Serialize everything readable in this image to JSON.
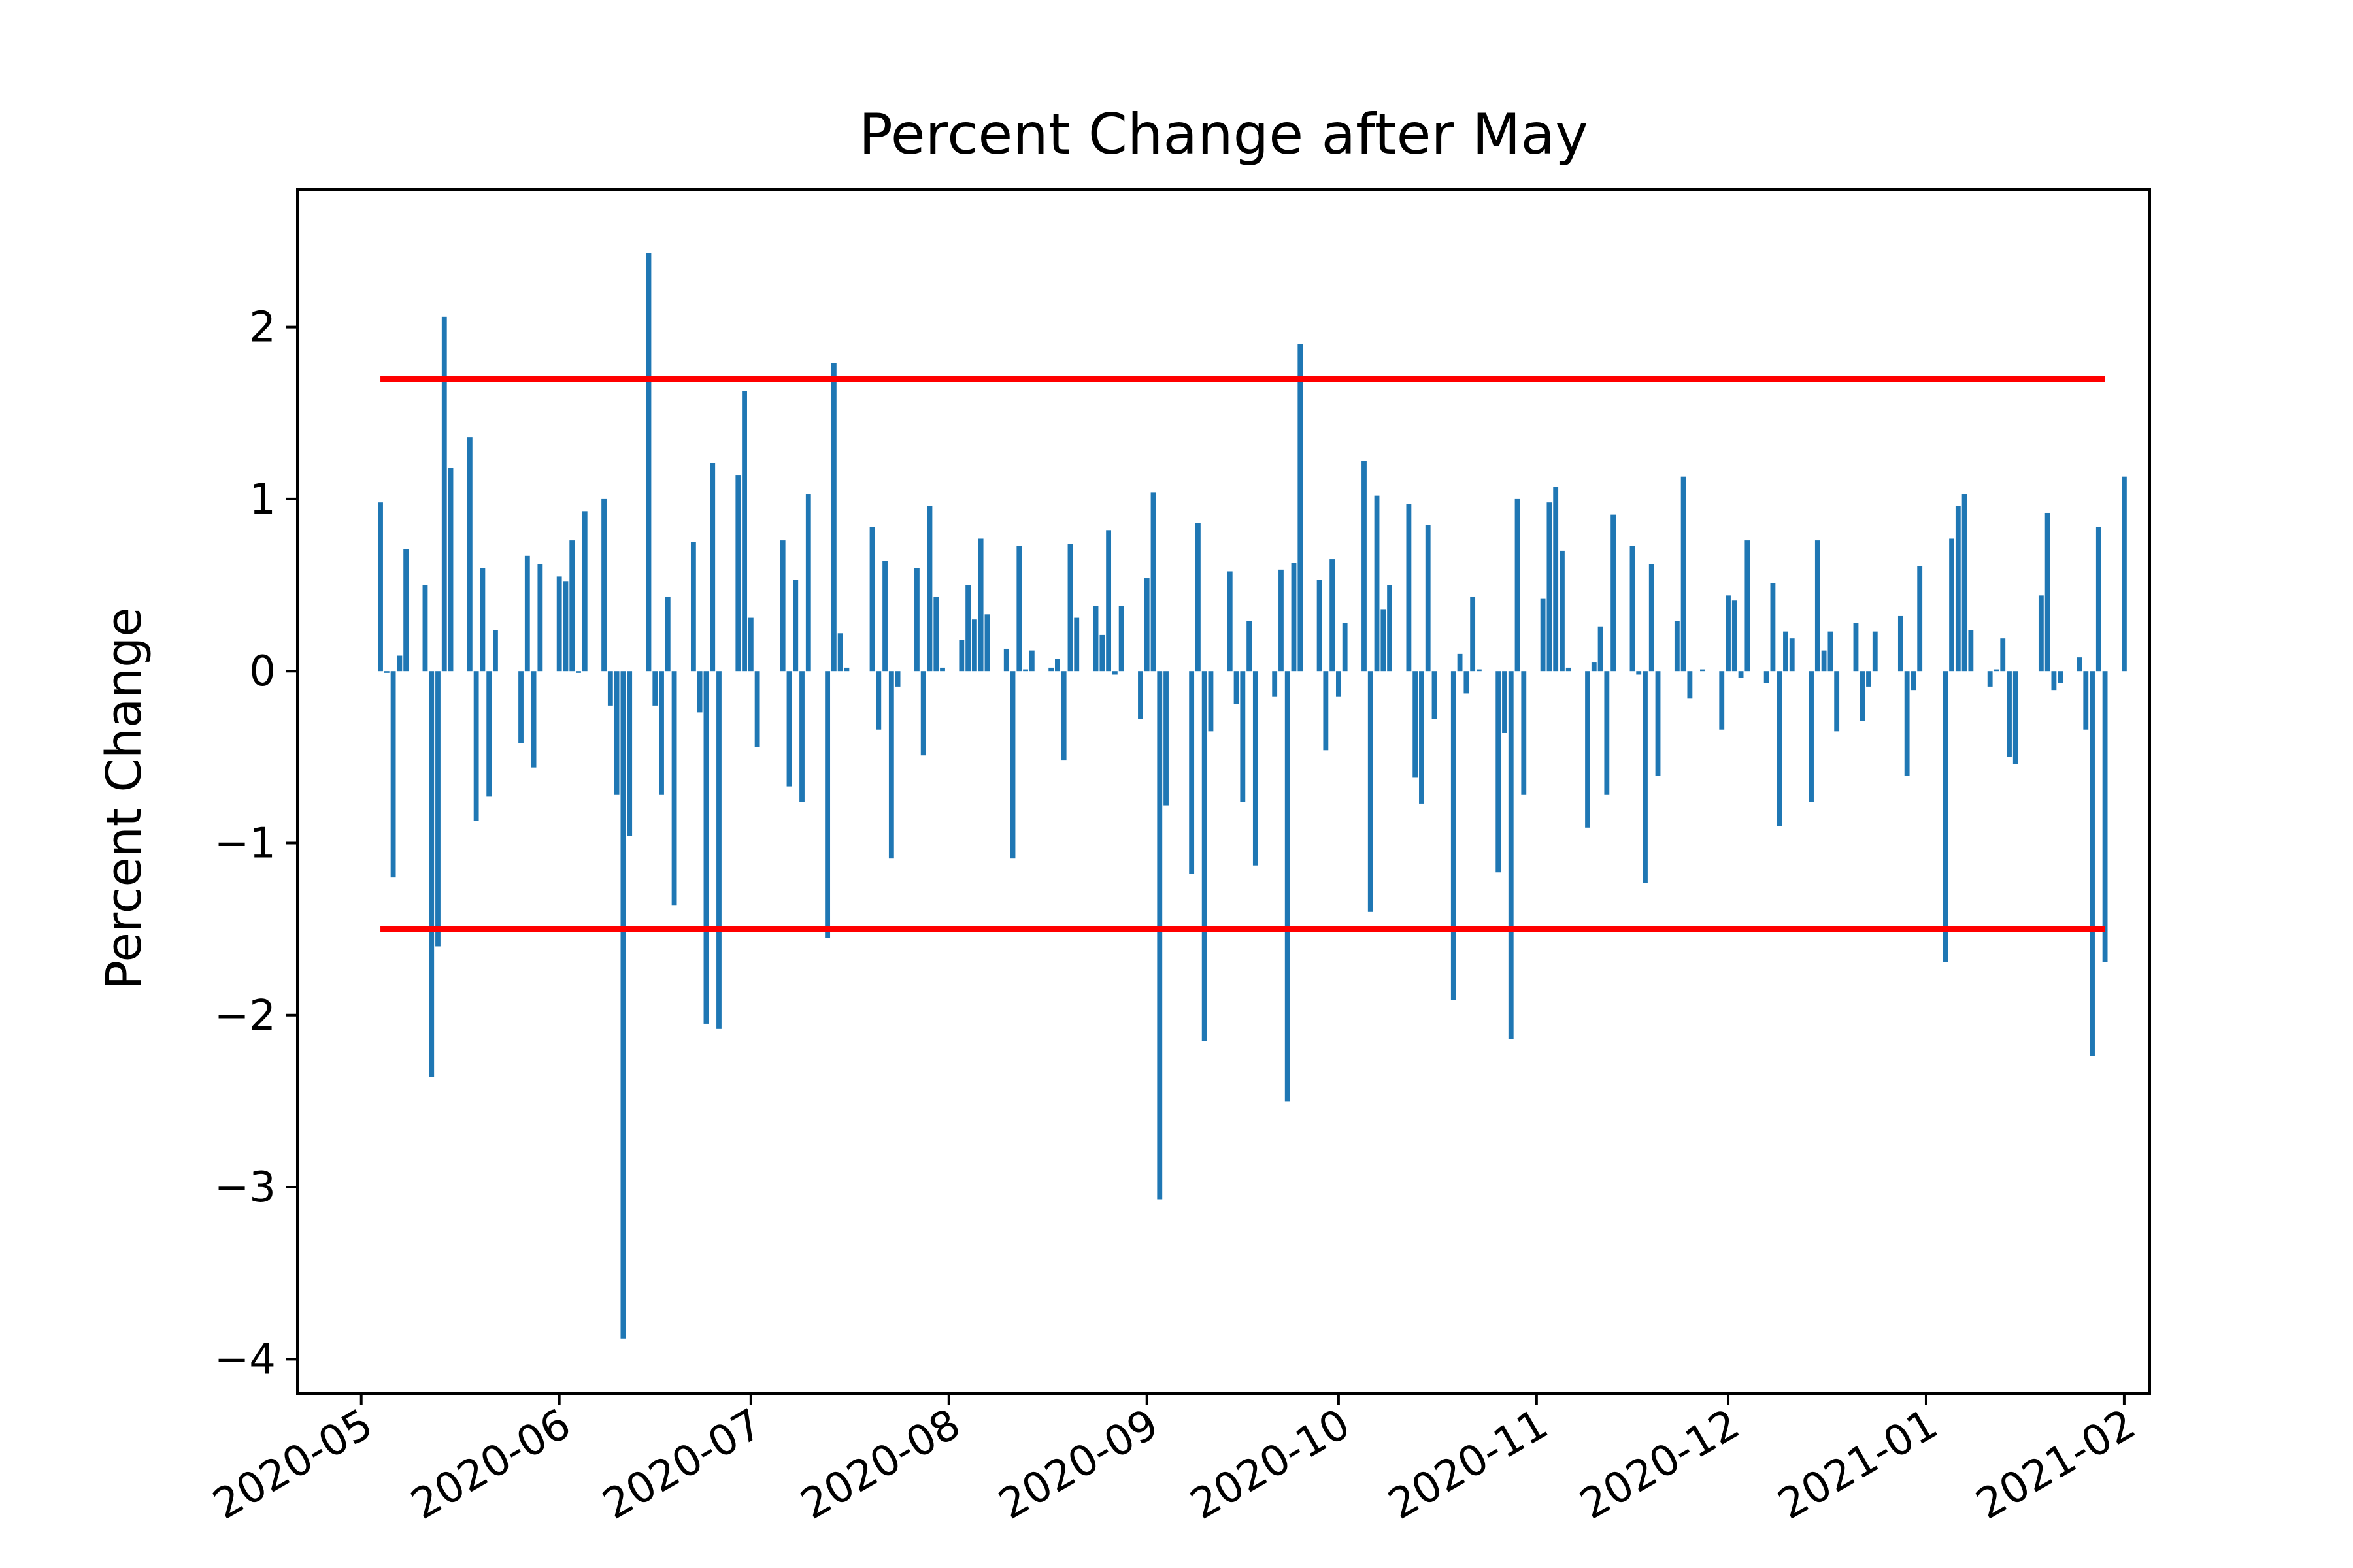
{
  "chart_data": {
    "type": "bar",
    "title": "Percent Change after May",
    "xlabel": "",
    "ylabel": "Percent Change",
    "x_axis": "date",
    "xlim": [
      "2020-04-21",
      "2021-02-05"
    ],
    "ylim": [
      -4.2,
      2.8
    ],
    "x_ticks": [
      "2020-05",
      "2020-06",
      "2020-07",
      "2020-08",
      "2020-09",
      "2020-10",
      "2020-11",
      "2020-12",
      "2021-01",
      "2021-02"
    ],
    "y_ticks": [
      2,
      1,
      0,
      -1,
      -2,
      -3,
      -4
    ],
    "y_tick_labels": [
      "2",
      "1",
      "0",
      "−1",
      "−2",
      "−3",
      "−4"
    ],
    "grid": false,
    "bar_color": "#1f77b4",
    "threshold_color": "#ff0000",
    "thresholds": [
      {
        "y": 1.7,
        "x_start": "2020-05-04",
        "x_end": "2021-01-29"
      },
      {
        "y": -1.5,
        "x_start": "2020-05-04",
        "x_end": "2021-01-29"
      }
    ],
    "series": [
      {
        "values": [
          [
            "2020-05-04",
            0.98
          ],
          [
            "2020-05-05",
            -0.01
          ],
          [
            "2020-05-06",
            -1.2
          ],
          [
            "2020-05-07",
            0.09
          ],
          [
            "2020-05-08",
            0.71
          ],
          [
            "2020-05-11",
            0.5
          ],
          [
            "2020-05-12",
            -2.36
          ],
          [
            "2020-05-13",
            -1.6
          ],
          [
            "2020-05-14",
            2.06
          ],
          [
            "2020-05-15",
            1.18
          ],
          [
            "2020-05-18",
            1.36
          ],
          [
            "2020-05-19",
            -0.87
          ],
          [
            "2020-05-20",
            0.6
          ],
          [
            "2020-05-21",
            -0.73
          ],
          [
            "2020-05-22",
            0.24
          ],
          [
            "2020-05-26",
            -0.42
          ],
          [
            "2020-05-27",
            0.67
          ],
          [
            "2020-05-28",
            -0.56
          ],
          [
            "2020-05-29",
            0.62
          ],
          [
            "2020-06-01",
            0.55
          ],
          [
            "2020-06-02",
            0.52
          ],
          [
            "2020-06-03",
            0.76
          ],
          [
            "2020-06-04",
            -0.01
          ],
          [
            "2020-06-05",
            0.93
          ],
          [
            "2020-06-08",
            1.0
          ],
          [
            "2020-06-09",
            -0.2
          ],
          [
            "2020-06-10",
            -0.72
          ],
          [
            "2020-06-11",
            -3.88
          ],
          [
            "2020-06-12",
            -0.96
          ],
          [
            "2020-06-15",
            2.43
          ],
          [
            "2020-06-16",
            -0.2
          ],
          [
            "2020-06-17",
            -0.72
          ],
          [
            "2020-06-18",
            0.43
          ],
          [
            "2020-06-19",
            -1.36
          ],
          [
            "2020-06-22",
            0.75
          ],
          [
            "2020-06-23",
            -0.24
          ],
          [
            "2020-06-24",
            -2.05
          ],
          [
            "2020-06-25",
            1.21
          ],
          [
            "2020-06-26",
            -2.08
          ],
          [
            "2020-06-29",
            1.14
          ],
          [
            "2020-06-30",
            1.63
          ],
          [
            "2020-07-01",
            0.31
          ],
          [
            "2020-07-02",
            -0.44
          ],
          [
            "2020-07-06",
            0.76
          ],
          [
            "2020-07-07",
            -0.67
          ],
          [
            "2020-07-08",
            0.53
          ],
          [
            "2020-07-09",
            -0.76
          ],
          [
            "2020-07-10",
            1.03
          ],
          [
            "2020-07-13",
            -1.55
          ],
          [
            "2020-07-14",
            1.79
          ],
          [
            "2020-07-15",
            0.22
          ],
          [
            "2020-07-16",
            0.02
          ],
          [
            "2020-07-20",
            0.84
          ],
          [
            "2020-07-21",
            -0.34
          ],
          [
            "2020-07-22",
            0.64
          ],
          [
            "2020-07-23",
            -1.09
          ],
          [
            "2020-07-24",
            -0.09
          ],
          [
            "2020-07-27",
            0.6
          ],
          [
            "2020-07-28",
            -0.49
          ],
          [
            "2020-07-29",
            0.96
          ],
          [
            "2020-07-30",
            0.43
          ],
          [
            "2020-07-31",
            0.02
          ],
          [
            "2020-08-03",
            0.18
          ],
          [
            "2020-08-04",
            0.5
          ],
          [
            "2020-08-05",
            0.3
          ],
          [
            "2020-08-06",
            0.77
          ],
          [
            "2020-08-07",
            0.33
          ],
          [
            "2020-08-10",
            0.13
          ],
          [
            "2020-08-11",
            -1.09
          ],
          [
            "2020-08-12",
            0.73
          ],
          [
            "2020-08-13",
            0.01
          ],
          [
            "2020-08-14",
            0.12
          ],
          [
            "2020-08-17",
            0.02
          ],
          [
            "2020-08-18",
            0.07
          ],
          [
            "2020-08-19",
            -0.52
          ],
          [
            "2020-08-20",
            0.74
          ],
          [
            "2020-08-21",
            0.31
          ],
          [
            "2020-08-24",
            0.38
          ],
          [
            "2020-08-25",
            0.21
          ],
          [
            "2020-08-26",
            0.82
          ],
          [
            "2020-08-27",
            -0.02
          ],
          [
            "2020-08-28",
            0.38
          ],
          [
            "2020-08-31",
            -0.28
          ],
          [
            "2020-09-01",
            0.54
          ],
          [
            "2020-09-02",
            1.04
          ],
          [
            "2020-09-03",
            -3.07
          ],
          [
            "2020-09-04",
            -0.78
          ],
          [
            "2020-09-08",
            -1.18
          ],
          [
            "2020-09-09",
            0.86
          ],
          [
            "2020-09-10",
            -2.15
          ],
          [
            "2020-09-11",
            -0.35
          ],
          [
            "2020-09-14",
            0.58
          ],
          [
            "2020-09-15",
            -0.19
          ],
          [
            "2020-09-16",
            -0.76
          ],
          [
            "2020-09-17",
            0.29
          ],
          [
            "2020-09-18",
            -1.13
          ],
          [
            "2020-09-21",
            -0.15
          ],
          [
            "2020-09-22",
            0.59
          ],
          [
            "2020-09-23",
            -2.5
          ],
          [
            "2020-09-24",
            0.63
          ],
          [
            "2020-09-25",
            1.9
          ],
          [
            "2020-09-28",
            0.53
          ],
          [
            "2020-09-29",
            -0.46
          ],
          [
            "2020-09-30",
            0.65
          ],
          [
            "2020-10-01",
            -0.15
          ],
          [
            "2020-10-02",
            0.28
          ],
          [
            "2020-10-05",
            1.22
          ],
          [
            "2020-10-06",
            -1.4
          ],
          [
            "2020-10-07",
            1.02
          ],
          [
            "2020-10-08",
            0.36
          ],
          [
            "2020-10-09",
            0.5
          ],
          [
            "2020-10-12",
            0.97
          ],
          [
            "2020-10-13",
            -0.62
          ],
          [
            "2020-10-14",
            -0.77
          ],
          [
            "2020-10-15",
            0.85
          ],
          [
            "2020-10-16",
            -0.28
          ],
          [
            "2020-10-19",
            -1.91
          ],
          [
            "2020-10-20",
            0.1
          ],
          [
            "2020-10-21",
            -0.13
          ],
          [
            "2020-10-22",
            0.43
          ],
          [
            "2020-10-23",
            0.01
          ],
          [
            "2020-10-26",
            -1.17
          ],
          [
            "2020-10-27",
            -0.36
          ],
          [
            "2020-10-28",
            -2.14
          ],
          [
            "2020-10-29",
            1.0
          ],
          [
            "2020-10-30",
            -0.72
          ],
          [
            "2020-11-02",
            0.42
          ],
          [
            "2020-11-03",
            0.98
          ],
          [
            "2020-11-04",
            1.07
          ],
          [
            "2020-11-05",
            0.7
          ],
          [
            "2020-11-06",
            0.02
          ],
          [
            "2020-11-09",
            -0.91
          ],
          [
            "2020-11-10",
            0.05
          ],
          [
            "2020-11-11",
            0.26
          ],
          [
            "2020-11-12",
            -0.72
          ],
          [
            "2020-11-13",
            0.91
          ],
          [
            "2020-11-16",
            0.73
          ],
          [
            "2020-11-17",
            -0.02
          ],
          [
            "2020-11-18",
            -1.23
          ],
          [
            "2020-11-19",
            0.62
          ],
          [
            "2020-11-20",
            -0.61
          ],
          [
            "2020-11-23",
            0.29
          ],
          [
            "2020-11-24",
            1.13
          ],
          [
            "2020-11-25",
            -0.16
          ],
          [
            "2020-11-27",
            0.01
          ],
          [
            "2020-11-30",
            -0.34
          ],
          [
            "2020-12-01",
            0.44
          ],
          [
            "2020-12-02",
            0.41
          ],
          [
            "2020-12-03",
            -0.04
          ],
          [
            "2020-12-04",
            0.76
          ],
          [
            "2020-12-07",
            -0.07
          ],
          [
            "2020-12-08",
            0.51
          ],
          [
            "2020-12-09",
            -0.9
          ],
          [
            "2020-12-10",
            0.23
          ],
          [
            "2020-12-11",
            0.19
          ],
          [
            "2020-12-14",
            -0.76
          ],
          [
            "2020-12-15",
            0.76
          ],
          [
            "2020-12-16",
            0.12
          ],
          [
            "2020-12-17",
            0.23
          ],
          [
            "2020-12-18",
            -0.35
          ],
          [
            "2020-12-21",
            0.28
          ],
          [
            "2020-12-22",
            -0.29
          ],
          [
            "2020-12-23",
            -0.09
          ],
          [
            "2020-12-24",
            0.23
          ],
          [
            "2020-12-28",
            0.32
          ],
          [
            "2020-12-29",
            -0.61
          ],
          [
            "2020-12-30",
            -0.11
          ],
          [
            "2020-12-31",
            0.61
          ],
          [
            "2021-01-04",
            -1.69
          ],
          [
            "2021-01-05",
            0.77
          ],
          [
            "2021-01-06",
            0.96
          ],
          [
            "2021-01-07",
            1.03
          ],
          [
            "2021-01-08",
            0.24
          ],
          [
            "2021-01-11",
            -0.09
          ],
          [
            "2021-01-12",
            0.01
          ],
          [
            "2021-01-13",
            0.19
          ],
          [
            "2021-01-14",
            -0.5
          ],
          [
            "2021-01-15",
            -0.54
          ],
          [
            "2021-01-19",
            0.44
          ],
          [
            "2021-01-20",
            0.92
          ],
          [
            "2021-01-21",
            -0.11
          ],
          [
            "2021-01-22",
            -0.07
          ],
          [
            "2021-01-25",
            0.08
          ],
          [
            "2021-01-26",
            -0.34
          ],
          [
            "2021-01-27",
            -2.24
          ],
          [
            "2021-01-28",
            0.84
          ],
          [
            "2021-01-29",
            -1.69
          ],
          [
            "2021-02-01",
            1.13
          ]
        ]
      }
    ]
  }
}
